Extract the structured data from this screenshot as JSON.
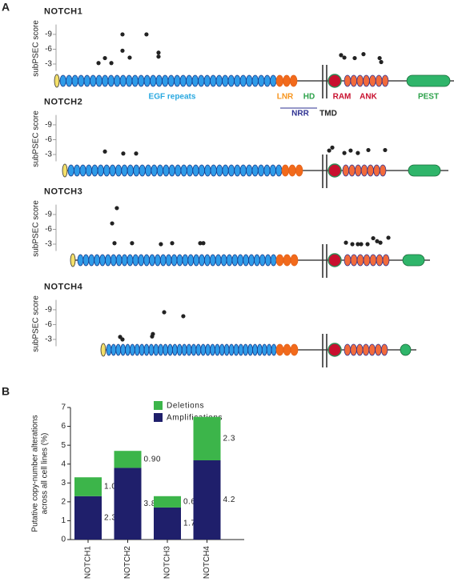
{
  "panels": [
    "A",
    "B"
  ],
  "chart_data": [
    {
      "type": "scatter",
      "title": "NOTCH1",
      "ylabel": "subPSEC score",
      "color": "#222222",
      "annotations": [
        "EGF repeats",
        "LNR",
        "HD",
        "RAM",
        "ANK",
        "PEST",
        "NRR",
        "TMD"
      ],
      "x": [
        271,
        312,
        353,
        424,
        424,
        470,
        577,
        654,
        654,
        1819,
        1840,
        1906,
        1962,
        2065,
        2075
      ],
      "values": [
        -3.2,
        -4.2,
        -3.2,
        -9,
        -5.7,
        -4.3,
        -9,
        -5.3,
        -4.5,
        -4.8,
        -4.3,
        -4.2,
        -5,
        -4.2,
        -3.4
      ],
      "xlim": [
        0,
        2555
      ],
      "ylim": [
        0,
        -11
      ],
      "yticks": [
        -9,
        -6,
        -3
      ]
    },
    {
      "type": "scatter",
      "title": "NOTCH2",
      "ylabel": "subPSEC score",
      "color": "#222222",
      "x": [
        312,
        429,
        511,
        1743,
        1763,
        1840,
        1880,
        1926,
        1993,
        2100
      ],
      "values": [
        -3.6,
        -3.2,
        -3.2,
        -3.8,
        -4.4,
        -3.3,
        -3.8,
        -3.3,
        -3.9,
        -3.9
      ],
      "xlim": [
        0,
        2555
      ],
      "ylim": [
        0,
        -11
      ],
      "yticks": [
        -9,
        -6,
        -3
      ]
    },
    {
      "type": "scatter",
      "title": "NOTCH3",
      "ylabel": "subPSEC score",
      "color": "#222222",
      "x": [
        388,
        358,
        373,
        485,
        669,
        741,
        920,
        940,
        1850,
        1891,
        1926,
        1947,
        1988,
        2024,
        2049,
        2070,
        2121
      ],
      "values": [
        -10.3,
        -7.2,
        -3.2,
        -3.2,
        -3,
        -3.2,
        -3.2,
        -3.2,
        -3.3,
        -3,
        -3,
        -3,
        -3,
        -4.2,
        -3.6,
        -3.3,
        -4.3
      ],
      "xlim": [
        0,
        2555
      ],
      "ylim": [
        0,
        -11
      ],
      "yticks": [
        -9,
        -6,
        -3
      ]
    },
    {
      "type": "scatter",
      "title": "NOTCH4",
      "ylabel": "subPSEC score",
      "color": "#222222",
      "x": [
        409,
        424,
        613,
        618,
        690,
        812
      ],
      "values": [
        -3.5,
        -3,
        -3.6,
        -4.1,
        -8.5,
        -7.7
      ],
      "xlim": [
        0,
        2555
      ],
      "ylim": [
        0,
        -11
      ],
      "yticks": [
        -9,
        -6,
        -3
      ]
    },
    {
      "type": "stacked_bar",
      "ylabel": [
        "Putative copy-number alterations",
        "across all cell lines (%)"
      ],
      "categories": [
        "NOTCH1",
        "NOTCH2",
        "NOTCH3",
        "NOTCH4"
      ],
      "series": [
        {
          "name": "Amplifications",
          "color": "#1f1f6b",
          "values": [
            2.3,
            3.8,
            1.7,
            4.2
          ]
        },
        {
          "name": "Deletions",
          "color": "#3cb54a",
          "values": [
            1,
            0.9,
            0.6,
            2.3
          ],
          "value_labels": [
            "1.0",
            "0.90",
            "0.60",
            "2.3"
          ]
        }
      ],
      "ylim": [
        0,
        7
      ],
      "yticks": [
        0,
        1,
        2,
        3,
        4,
        5,
        6,
        7
      ]
    }
  ]
}
